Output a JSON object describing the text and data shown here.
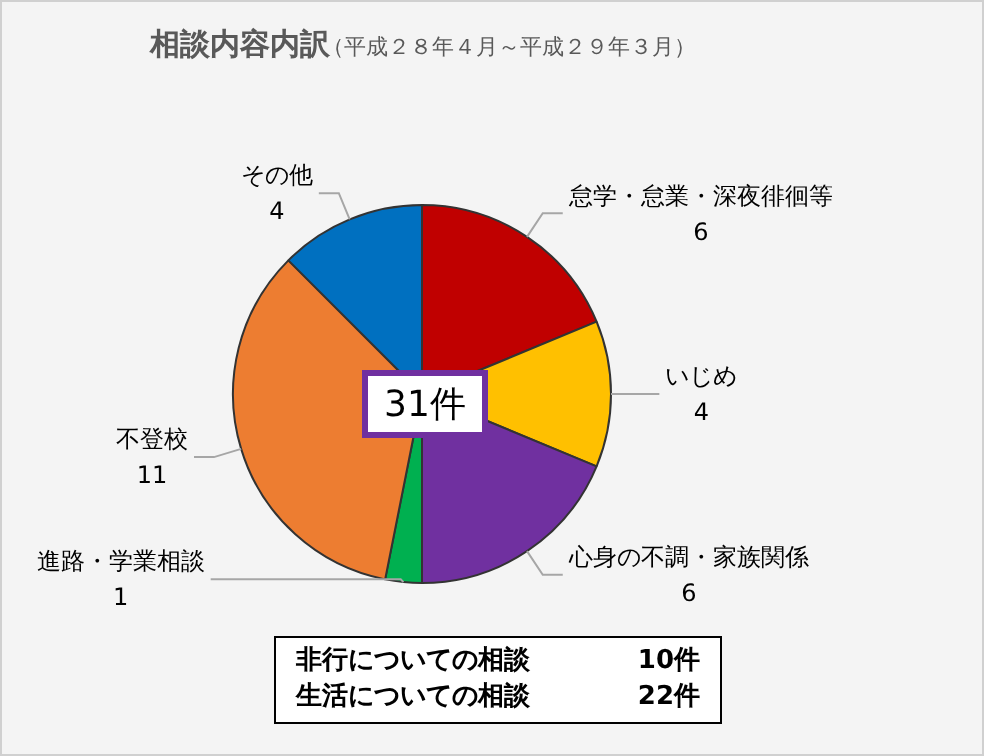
{
  "chart_data": {
    "type": "pie",
    "title": "相談内容内訳",
    "subtitle": "（平成２８年４月～平成２９年３月）",
    "categories": [
      "怠学・怠業・深夜徘徊等",
      "いじめ",
      "心身の不調・家族関係",
      "進路・学業相談",
      "不登校",
      "その他"
    ],
    "values": [
      6,
      4,
      6,
      1,
      11,
      4
    ],
    "colors": [
      "#c00000",
      "#ffc000",
      "#7030a0",
      "#00b050",
      "#ed7d31",
      "#0070c0"
    ],
    "data_labels": true,
    "legend": false,
    "annotations": [
      "31件",
      "非行についての相談",
      "10件",
      "生活についての相談",
      "22件"
    ]
  }
}
